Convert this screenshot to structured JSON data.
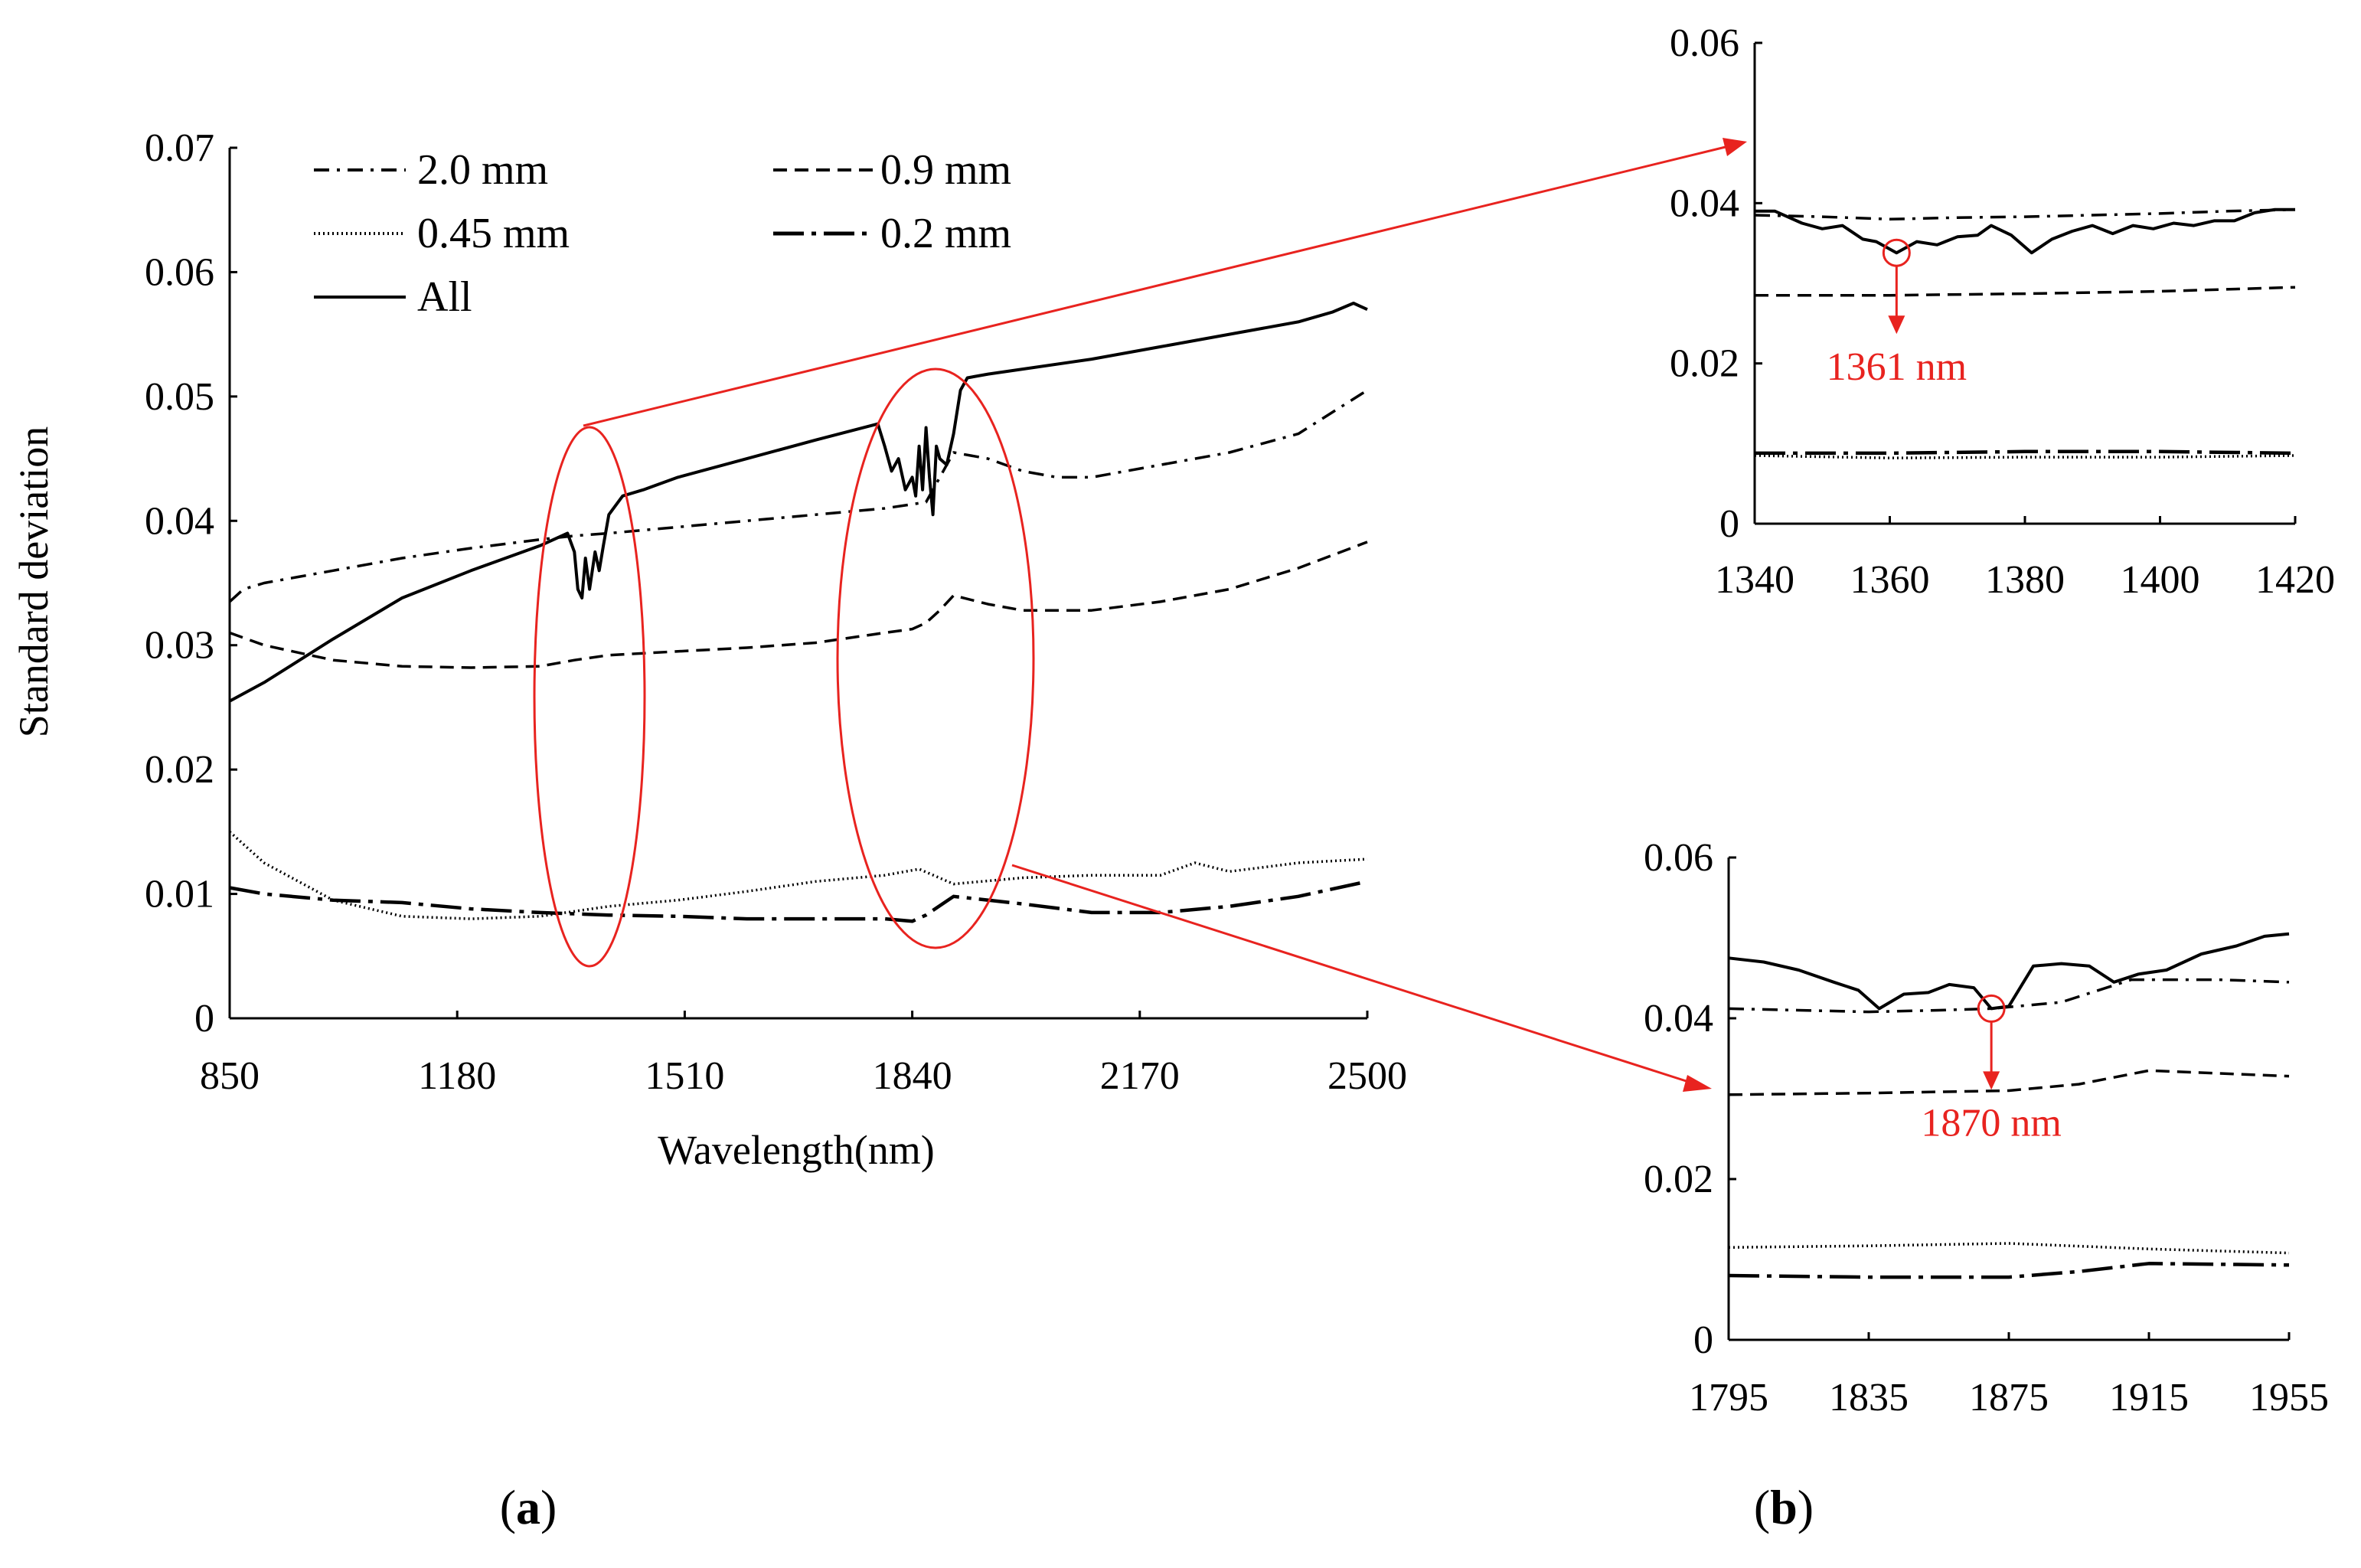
{
  "chart_data": [
    {
      "panel": "a",
      "type": "line",
      "xlabel": "Wavelength(nm)",
      "ylabel": "Standard deviation",
      "xlim": [
        850,
        2500
      ],
      "ylim": [
        0,
        0.07
      ],
      "xticks": [
        850,
        1180,
        1510,
        1840,
        2170,
        2500
      ],
      "yticks": [
        0,
        0.01,
        0.02,
        0.03,
        0.04,
        0.05,
        0.06,
        0.07
      ],
      "ytick_labels": [
        "0",
        "0.01",
        "0.02",
        "0.03",
        "0.04",
        "0.05",
        "0.06",
        "0.07"
      ],
      "legend": [
        "2.0 mm",
        "0.9 mm",
        "0.45 mm",
        "0.2 mm",
        "All"
      ],
      "series": [
        {
          "name": "2.0 mm",
          "style": "dashdot",
          "x": [
            850,
            870,
            900,
            950,
            1000,
            1100,
            1200,
            1300,
            1350,
            1400,
            1500,
            1600,
            1700,
            1800,
            1860,
            1900,
            1950,
            2000,
            2050,
            2100,
            2150,
            2200,
            2300,
            2400,
            2500
          ],
          "y": [
            0.0335,
            0.0345,
            0.035,
            0.0355,
            0.036,
            0.037,
            0.0378,
            0.0385,
            0.0388,
            0.039,
            0.0395,
            0.04,
            0.0405,
            0.041,
            0.0415,
            0.0455,
            0.045,
            0.044,
            0.0435,
            0.0435,
            0.044,
            0.0445,
            0.0455,
            0.047,
            0.0505
          ]
        },
        {
          "name": "0.9 mm",
          "style": "dashed",
          "x": [
            850,
            900,
            1000,
            1100,
            1200,
            1300,
            1350,
            1400,
            1500,
            1600,
            1700,
            1800,
            1840,
            1860,
            1880,
            1900,
            1950,
            2000,
            2100,
            2200,
            2300,
            2400,
            2500
          ],
          "y": [
            0.031,
            0.03,
            0.0288,
            0.0283,
            0.0282,
            0.0283,
            0.0288,
            0.0292,
            0.0295,
            0.0298,
            0.0302,
            0.031,
            0.0313,
            0.0318,
            0.0328,
            0.034,
            0.0333,
            0.0328,
            0.0328,
            0.0335,
            0.0345,
            0.0362,
            0.0383
          ]
        },
        {
          "name": "0.45 mm",
          "style": "dotted",
          "x": [
            850,
            900,
            1000,
            1100,
            1200,
            1300,
            1400,
            1500,
            1600,
            1700,
            1800,
            1850,
            1900,
            2000,
            2100,
            2200,
            2250,
            2300,
            2400,
            2500
          ],
          "y": [
            0.015,
            0.0125,
            0.0095,
            0.0082,
            0.008,
            0.0082,
            0.009,
            0.0095,
            0.0102,
            0.011,
            0.0115,
            0.012,
            0.0108,
            0.0113,
            0.0115,
            0.0115,
            0.0125,
            0.0118,
            0.0125,
            0.0128
          ]
        },
        {
          "name": "0.2 mm",
          "style": "longdashdot",
          "x": [
            850,
            900,
            1000,
            1100,
            1200,
            1300,
            1400,
            1500,
            1600,
            1700,
            1800,
            1840,
            1860,
            1900,
            2000,
            2100,
            2200,
            2300,
            2400,
            2500
          ],
          "y": [
            0.0105,
            0.01,
            0.0095,
            0.0093,
            0.0088,
            0.0085,
            0.0083,
            0.0082,
            0.008,
            0.008,
            0.008,
            0.0078,
            0.0083,
            0.0098,
            0.0092,
            0.0085,
            0.0085,
            0.009,
            0.0098,
            0.011
          ]
        },
        {
          "name": "All",
          "style": "solid",
          "x": [
            850,
            900,
            1000,
            1100,
            1200,
            1300,
            1340,
            1350,
            1355,
            1361,
            1366,
            1372,
            1380,
            1386,
            1392,
            1400,
            1420,
            1450,
            1500,
            1600,
            1700,
            1790,
            1800,
            1810,
            1820,
            1830,
            1840,
            1845,
            1850,
            1855,
            1860,
            1865,
            1870,
            1875,
            1880,
            1890,
            1900,
            1910,
            1920,
            1950,
            2000,
            2100,
            2200,
            2300,
            2400,
            2450,
            2480,
            2500
          ],
          "y": [
            0.0255,
            0.027,
            0.0305,
            0.0338,
            0.036,
            0.038,
            0.039,
            0.0375,
            0.0345,
            0.0338,
            0.037,
            0.0345,
            0.0375,
            0.036,
            0.038,
            0.0405,
            0.042,
            0.0425,
            0.0435,
            0.045,
            0.0465,
            0.0478,
            0.046,
            0.044,
            0.045,
            0.0425,
            0.0435,
            0.042,
            0.046,
            0.0425,
            0.0475,
            0.0435,
            0.0405,
            0.046,
            0.045,
            0.0445,
            0.047,
            0.0505,
            0.0515,
            0.0518,
            0.0522,
            0.053,
            0.054,
            0.055,
            0.056,
            0.0568,
            0.0575,
            0.057
          ]
        }
      ]
    },
    {
      "panel": "b-top",
      "type": "line",
      "xlim": [
        1340,
        1420
      ],
      "ylim": [
        0,
        0.06
      ],
      "xticks": [
        1340,
        1360,
        1380,
        1400,
        1420
      ],
      "yticks": [
        0,
        0.02,
        0.04,
        0.06
      ],
      "ytick_labels": [
        "0",
        "0.02",
        "0.04",
        "0.06"
      ],
      "annotation": {
        "text": "1361 nm",
        "x": 1361,
        "y": 0.0338
      },
      "series": [
        {
          "name": "2.0 mm",
          "style": "dashdot",
          "x": [
            1340,
            1350,
            1360,
            1370,
            1380,
            1390,
            1400,
            1410,
            1420
          ],
          "y": [
            0.0385,
            0.0383,
            0.038,
            0.0382,
            0.0383,
            0.0385,
            0.0387,
            0.039,
            0.0392
          ]
        },
        {
          "name": "0.9 mm",
          "style": "dashed",
          "x": [
            1340,
            1360,
            1380,
            1400,
            1420
          ],
          "y": [
            0.0285,
            0.0285,
            0.0287,
            0.029,
            0.0295
          ]
        },
        {
          "name": "0.45 mm",
          "style": "dotted",
          "x": [
            1340,
            1360,
            1380,
            1400,
            1420
          ],
          "y": [
            0.0085,
            0.0082,
            0.0083,
            0.0083,
            0.0085
          ]
        },
        {
          "name": "0.2 mm",
          "style": "longdashdot",
          "x": [
            1340,
            1360,
            1380,
            1400,
            1420
          ],
          "y": [
            0.0088,
            0.0088,
            0.009,
            0.009,
            0.0088
          ]
        },
        {
          "name": "All",
          "style": "solid",
          "x": [
            1340,
            1343,
            1347,
            1350,
            1353,
            1356,
            1358,
            1361,
            1364,
            1367,
            1370,
            1373,
            1375,
            1378,
            1381,
            1384,
            1387,
            1390,
            1393,
            1396,
            1399,
            1402,
            1405,
            1408,
            1411,
            1414,
            1417,
            1420
          ],
          "y": [
            0.039,
            0.039,
            0.0375,
            0.0368,
            0.0372,
            0.0355,
            0.0352,
            0.0338,
            0.0352,
            0.0348,
            0.0358,
            0.036,
            0.0372,
            0.036,
            0.0338,
            0.0355,
            0.0365,
            0.0372,
            0.0362,
            0.0372,
            0.0368,
            0.0375,
            0.0372,
            0.0378,
            0.0378,
            0.0388,
            0.0392,
            0.0392
          ]
        }
      ]
    },
    {
      "panel": "b-bottom",
      "type": "line",
      "xlim": [
        1795,
        1955
      ],
      "ylim": [
        0,
        0.06
      ],
      "xticks": [
        1795,
        1835,
        1875,
        1915,
        1955
      ],
      "yticks": [
        0,
        0.02,
        0.04,
        0.06
      ],
      "ytick_labels": [
        "0",
        "0.02",
        "0.04",
        "0.06"
      ],
      "annotation": {
        "text": "1870 nm",
        "x": 1870,
        "y": 0.0412
      },
      "series": [
        {
          "name": "2.0 mm",
          "style": "dashdot",
          "x": [
            1795,
            1815,
            1835,
            1855,
            1870,
            1890,
            1910,
            1935,
            1955
          ],
          "y": [
            0.0412,
            0.041,
            0.0408,
            0.041,
            0.0412,
            0.042,
            0.0448,
            0.0448,
            0.0445
          ]
        },
        {
          "name": "0.9 mm",
          "style": "dashed",
          "x": [
            1795,
            1835,
            1875,
            1895,
            1915,
            1955
          ],
          "y": [
            0.0305,
            0.0307,
            0.031,
            0.0318,
            0.0335,
            0.0328
          ]
        },
        {
          "name": "0.45 mm",
          "style": "dotted",
          "x": [
            1795,
            1835,
            1875,
            1915,
            1955
          ],
          "y": [
            0.0115,
            0.0117,
            0.012,
            0.0113,
            0.0108
          ]
        },
        {
          "name": "0.2 mm",
          "style": "longdashdot",
          "x": [
            1795,
            1835,
            1875,
            1895,
            1915,
            1955
          ],
          "y": [
            0.008,
            0.0078,
            0.0078,
            0.0085,
            0.0095,
            0.0093
          ]
        },
        {
          "name": "All",
          "style": "solid",
          "x": [
            1795,
            1805,
            1815,
            1825,
            1832,
            1838,
            1845,
            1852,
            1858,
            1865,
            1870,
            1875,
            1882,
            1890,
            1898,
            1905,
            1912,
            1920,
            1930,
            1940,
            1948,
            1955
          ],
          "y": [
            0.0475,
            0.047,
            0.046,
            0.0445,
            0.0435,
            0.0412,
            0.043,
            0.0432,
            0.0442,
            0.0438,
            0.0412,
            0.0415,
            0.0465,
            0.0468,
            0.0465,
            0.0445,
            0.0455,
            0.046,
            0.048,
            0.049,
            0.0502,
            0.0505
          ]
        }
      ]
    }
  ],
  "labels": {
    "panel_a_prefix": "(",
    "panel_a_letter": "a",
    "panel_a_suffix": ")",
    "panel_b_prefix": "(",
    "panel_b_letter": "b",
    "panel_b_suffix": ")"
  },
  "colors": {
    "line": "#000000",
    "highlight": "#e8231f"
  }
}
